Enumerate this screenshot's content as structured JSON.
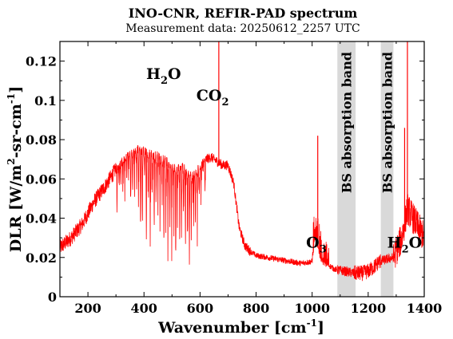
{
  "chart_data": {
    "type": "line",
    "title": "INO-CNR, REFIR-PAD spectrum",
    "subtitle": "Measurement data: 20250612_2257 UTC",
    "xlabel": {
      "base": "Wavenumber [cm",
      "sup": "-1",
      "close": "]"
    },
    "ylabel": {
      "a": "DLR [W/m",
      "sup1": "2",
      "b": "-sr-cm",
      "sup2": "-1",
      "c": "]"
    },
    "xlim": [
      100,
      1400
    ],
    "ylim": [
      0,
      0.13
    ],
    "xticks": [
      200,
      400,
      600,
      800,
      1000,
      1200,
      1400
    ],
    "xtick_labels": [
      "200",
      "400",
      "600",
      "800",
      "1000",
      "1200",
      "1400"
    ],
    "yticks": [
      0,
      0.02,
      0.04,
      0.06,
      0.08,
      0.1,
      0.12
    ],
    "ytick_labels": [
      "0",
      "0.02",
      "0.04",
      "0.06",
      "0.08",
      "0.1",
      "0.12"
    ],
    "grid": false,
    "series_color": "#ff0000",
    "band_color": "#d9d9d9",
    "series": [
      {
        "x": [
          100,
          140,
          180,
          220,
          260,
          300,
          340,
          360,
          380,
          400,
          420,
          440,
          460,
          480,
          500,
          520,
          540,
          560,
          580,
          600,
          620,
          640,
          660,
          670,
          680,
          700,
          720,
          740,
          760,
          780,
          800,
          840,
          880,
          920,
          960,
          1000,
          1010,
          1020,
          1030,
          1040,
          1060,
          1080,
          1150,
          1180,
          1200,
          1220,
          1240,
          1290,
          1320,
          1340,
          1360,
          1380,
          1400
        ],
        "y": [
          0.025,
          0.03,
          0.037,
          0.048,
          0.056,
          0.065,
          0.072,
          0.073,
          0.075,
          0.074,
          0.073,
          0.072,
          0.071,
          0.069,
          0.066,
          0.065,
          0.066,
          0.062,
          0.062,
          0.066,
          0.07,
          0.071,
          0.069,
          0.068,
          0.067,
          0.067,
          0.058,
          0.035,
          0.026,
          0.023,
          0.021,
          0.02,
          0.019,
          0.018,
          0.017,
          0.018,
          0.03,
          0.025,
          0.02,
          0.017,
          0.016,
          0.014,
          0.012,
          0.012,
          0.013,
          0.015,
          0.018,
          0.02,
          0.03,
          0.045,
          0.04,
          0.035,
          0.03
        ]
      }
    ],
    "absorption_lines": [
      {
        "center": 380,
        "value": 0.075,
        "depth": 0.025
      },
      {
        "center": 420,
        "value": 0.073,
        "depth": 0.045
      },
      {
        "center": 440,
        "value": 0.072,
        "depth": 0.05
      },
      {
        "center": 460,
        "value": 0.071,
        "depth": 0.052
      },
      {
        "center": 480,
        "value": 0.069,
        "depth": 0.045
      },
      {
        "center": 500,
        "value": 0.066,
        "depth": 0.04
      },
      {
        "center": 520,
        "value": 0.065,
        "depth": 0.035
      },
      {
        "center": 540,
        "value": 0.066,
        "depth": 0.03
      },
      {
        "center": 560,
        "value": 0.062,
        "depth": 0.035
      },
      {
        "center": 580,
        "value": 0.062,
        "depth": 0.03
      },
      {
        "center": 600,
        "value": 0.066,
        "depth": 0.02
      }
    ],
    "spikes": [
      {
        "x": 667,
        "y": 0.13
      },
      {
        "x": 1020,
        "y": 0.082
      },
      {
        "x": 1340,
        "y": 0.13
      },
      {
        "x": 1330,
        "y": 0.086
      }
    ],
    "bands": [
      {
        "x0": 1090,
        "x1": 1155,
        "label": "BS absorption band"
      },
      {
        "x0": 1245,
        "x1": 1290,
        "label": "BS absorption band"
      }
    ],
    "annotations": [
      {
        "main": "H",
        "sub": "2",
        "tail": "O",
        "x": 470,
        "y": 0.111
      },
      {
        "main": "CO",
        "sub": "2",
        "tail": "",
        "x": 645,
        "y": 0.1
      },
      {
        "main": "O",
        "sub": "3",
        "tail": "",
        "x": 1015,
        "y": 0.025
      },
      {
        "main": "H",
        "sub": "2",
        "tail": "O",
        "x": 1330,
        "y": 0.025
      }
    ]
  }
}
